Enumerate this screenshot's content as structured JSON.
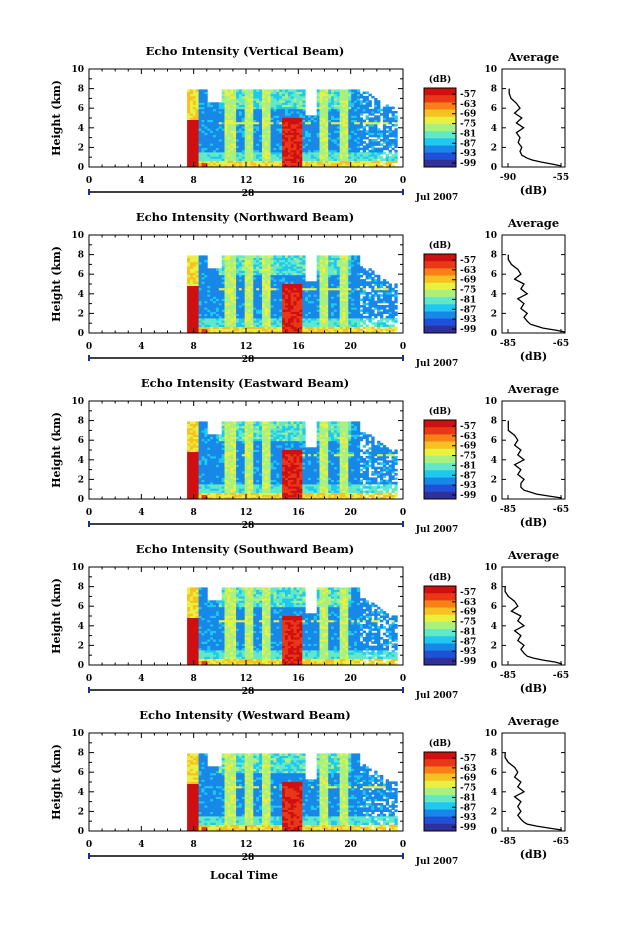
{
  "figure": {
    "x_common_label": "Local Time",
    "date_label": "Jul 2007",
    "day_label": "28",
    "avg_title": "Average",
    "avg_xlabel": "(dB)",
    "colorbar_title": "(dB)",
    "colorbar_ticks": [
      "-57",
      "-63",
      "-69",
      "-75",
      "-81",
      "-87",
      "-93",
      "-99"
    ],
    "colormap": [
      "#30309a",
      "#2050d8",
      "#1888e8",
      "#20c8f0",
      "#60e8c8",
      "#a8f080",
      "#e8f040",
      "#f8c020",
      "#f88018",
      "#e83818",
      "#d01010"
    ]
  },
  "chart_data": [
    {
      "type": "heatmap",
      "title": "Echo Intensity (Vertical Beam)",
      "ylabel": "Height (km)",
      "xlabel": "Local Time",
      "x_ticks": [
        "0",
        "4",
        "8",
        "12",
        "16",
        "20",
        "0"
      ],
      "y_ticks": [
        "0",
        "2",
        "4",
        "6",
        "8",
        "10"
      ],
      "xlim": [
        0,
        24
      ],
      "ylim": [
        0,
        10
      ],
      "value_range_db": [
        -99,
        -57
      ],
      "echo_start_hour": 7.5,
      "avg_profile": {
        "title": "Average",
        "xlabel": "(dB)",
        "x_ticks": [
          "-90",
          "-55"
        ],
        "xlim": [
          -90,
          -55
        ],
        "y_ticks": [
          "0",
          "2",
          "4",
          "6",
          "8",
          "10"
        ],
        "ylim": [
          0,
          10
        ],
        "height_km": [
          0.1,
          0.3,
          0.5,
          0.7,
          0.9,
          1.2,
          1.6,
          2.0,
          2.5,
          3.0,
          3.5,
          4.0,
          4.5,
          5.0,
          5.5,
          6.0,
          6.5,
          7.0,
          7.5,
          8.0
        ],
        "value_db": [
          -57,
          -62,
          -68,
          -73,
          -76,
          -79,
          -80,
          -79,
          -81,
          -80,
          -82,
          -78,
          -82,
          -79,
          -83,
          -80,
          -82,
          -85,
          -86,
          -86
        ]
      }
    },
    {
      "type": "heatmap",
      "title": "Echo Intensity (Northward Beam)",
      "ylabel": "Height (km)",
      "xlabel": "Local Time",
      "x_ticks": [
        "0",
        "4",
        "8",
        "12",
        "16",
        "20",
        "0"
      ],
      "y_ticks": [
        "0",
        "2",
        "4",
        "6",
        "8",
        "10"
      ],
      "xlim": [
        0,
        24
      ],
      "ylim": [
        0,
        10
      ],
      "value_range_db": [
        -99,
        -57
      ],
      "echo_start_hour": 7.5,
      "avg_profile": {
        "title": "Average",
        "xlabel": "(dB)",
        "x_ticks": [
          "-85",
          "-65"
        ],
        "xlim": [
          -85,
          -65
        ],
        "y_ticks": [
          "0",
          "2",
          "4",
          "6",
          "8",
          "10"
        ],
        "ylim": [
          0,
          10
        ],
        "height_km": [
          0.1,
          0.3,
          0.5,
          0.7,
          0.9,
          1.2,
          1.6,
          2.0,
          2.5,
          3.0,
          3.5,
          4.0,
          4.5,
          5.0,
          5.5,
          6.0,
          6.5,
          7.0,
          7.5,
          8.0
        ],
        "value_db": [
          -65,
          -68,
          -72,
          -74,
          -76,
          -77,
          -78,
          -77,
          -79,
          -78,
          -80,
          -77,
          -79,
          -78,
          -81,
          -79,
          -80,
          -82,
          -83,
          -83
        ]
      }
    },
    {
      "type": "heatmap",
      "title": "Echo Intensity (Eastward Beam)",
      "ylabel": "Height (km)",
      "xlabel": "Local Time",
      "x_ticks": [
        "0",
        "4",
        "8",
        "12",
        "16",
        "20",
        "0"
      ],
      "y_ticks": [
        "0",
        "2",
        "4",
        "6",
        "8",
        "10"
      ],
      "xlim": [
        0,
        24
      ],
      "ylim": [
        0,
        10
      ],
      "value_range_db": [
        -99,
        -57
      ],
      "echo_start_hour": 7.5,
      "avg_profile": {
        "title": "Average",
        "xlabel": "(dB)",
        "x_ticks": [
          "-85",
          "-65"
        ],
        "xlim": [
          -85,
          -65
        ],
        "y_ticks": [
          "0",
          "2",
          "4",
          "6",
          "8",
          "10"
        ],
        "ylim": [
          0,
          10
        ],
        "height_km": [
          0.1,
          0.3,
          0.5,
          0.7,
          0.9,
          1.2,
          1.6,
          2.0,
          2.5,
          3.0,
          3.5,
          4.0,
          4.5,
          5.0,
          5.5,
          6.0,
          6.5,
          7.0,
          7.5,
          8.0
        ],
        "value_db": [
          -66,
          -70,
          -74,
          -76,
          -78,
          -79,
          -79,
          -78,
          -80,
          -79,
          -81,
          -78,
          -80,
          -79,
          -81,
          -80,
          -81,
          -83,
          -83,
          -83
        ]
      }
    },
    {
      "type": "heatmap",
      "title": "Echo Intensity (Southward Beam)",
      "ylabel": "Height (km)",
      "xlabel": "Local Time",
      "x_ticks": [
        "0",
        "4",
        "8",
        "12",
        "16",
        "20",
        "0"
      ],
      "y_ticks": [
        "0",
        "2",
        "4",
        "6",
        "8",
        "10"
      ],
      "xlim": [
        0,
        24
      ],
      "ylim": [
        0,
        10
      ],
      "value_range_db": [
        -99,
        -57
      ],
      "echo_start_hour": 7.5,
      "avg_profile": {
        "title": "Average",
        "xlabel": "(dB)",
        "x_ticks": [
          "-85",
          "-65"
        ],
        "xlim": [
          -85,
          -65
        ],
        "y_ticks": [
          "0",
          "2",
          "4",
          "6",
          "8",
          "10"
        ],
        "ylim": [
          0,
          10
        ],
        "height_km": [
          0.1,
          0.3,
          0.5,
          0.7,
          0.9,
          1.2,
          1.6,
          2.0,
          2.5,
          3.0,
          3.5,
          4.0,
          4.5,
          5.0,
          5.5,
          6.0,
          6.5,
          7.0,
          7.5,
          8.0
        ],
        "value_db": [
          -66,
          -68,
          -72,
          -75,
          -77,
          -78,
          -79,
          -78,
          -80,
          -79,
          -81,
          -78,
          -80,
          -79,
          -82,
          -80,
          -81,
          -83,
          -84,
          -84
        ]
      }
    },
    {
      "type": "heatmap",
      "title": "Echo Intensity (Westward Beam)",
      "ylabel": "Height (km)",
      "xlabel": "Local Time",
      "x_ticks": [
        "0",
        "4",
        "8",
        "12",
        "16",
        "20",
        "0"
      ],
      "y_ticks": [
        "0",
        "2",
        "4",
        "6",
        "8",
        "10"
      ],
      "xlim": [
        0,
        24
      ],
      "ylim": [
        0,
        10
      ],
      "value_range_db": [
        -99,
        -57
      ],
      "echo_start_hour": 7.5,
      "avg_profile": {
        "title": "Average",
        "xlabel": "(dB)",
        "x_ticks": [
          "-85",
          "-65"
        ],
        "xlim": [
          -85,
          -65
        ],
        "y_ticks": [
          "0",
          "2",
          "4",
          "6",
          "8",
          "10"
        ],
        "ylim": [
          0,
          10
        ],
        "height_km": [
          0.1,
          0.3,
          0.5,
          0.7,
          0.9,
          1.2,
          1.6,
          2.0,
          2.5,
          3.0,
          3.5,
          4.0,
          4.5,
          5.0,
          5.5,
          6.0,
          6.5,
          7.0,
          7.5,
          8.0
        ],
        "value_db": [
          -66,
          -70,
          -74,
          -77,
          -78,
          -79,
          -80,
          -79,
          -80,
          -79,
          -81,
          -78,
          -80,
          -79,
          -81,
          -80,
          -81,
          -83,
          -84,
          -84
        ]
      }
    }
  ]
}
